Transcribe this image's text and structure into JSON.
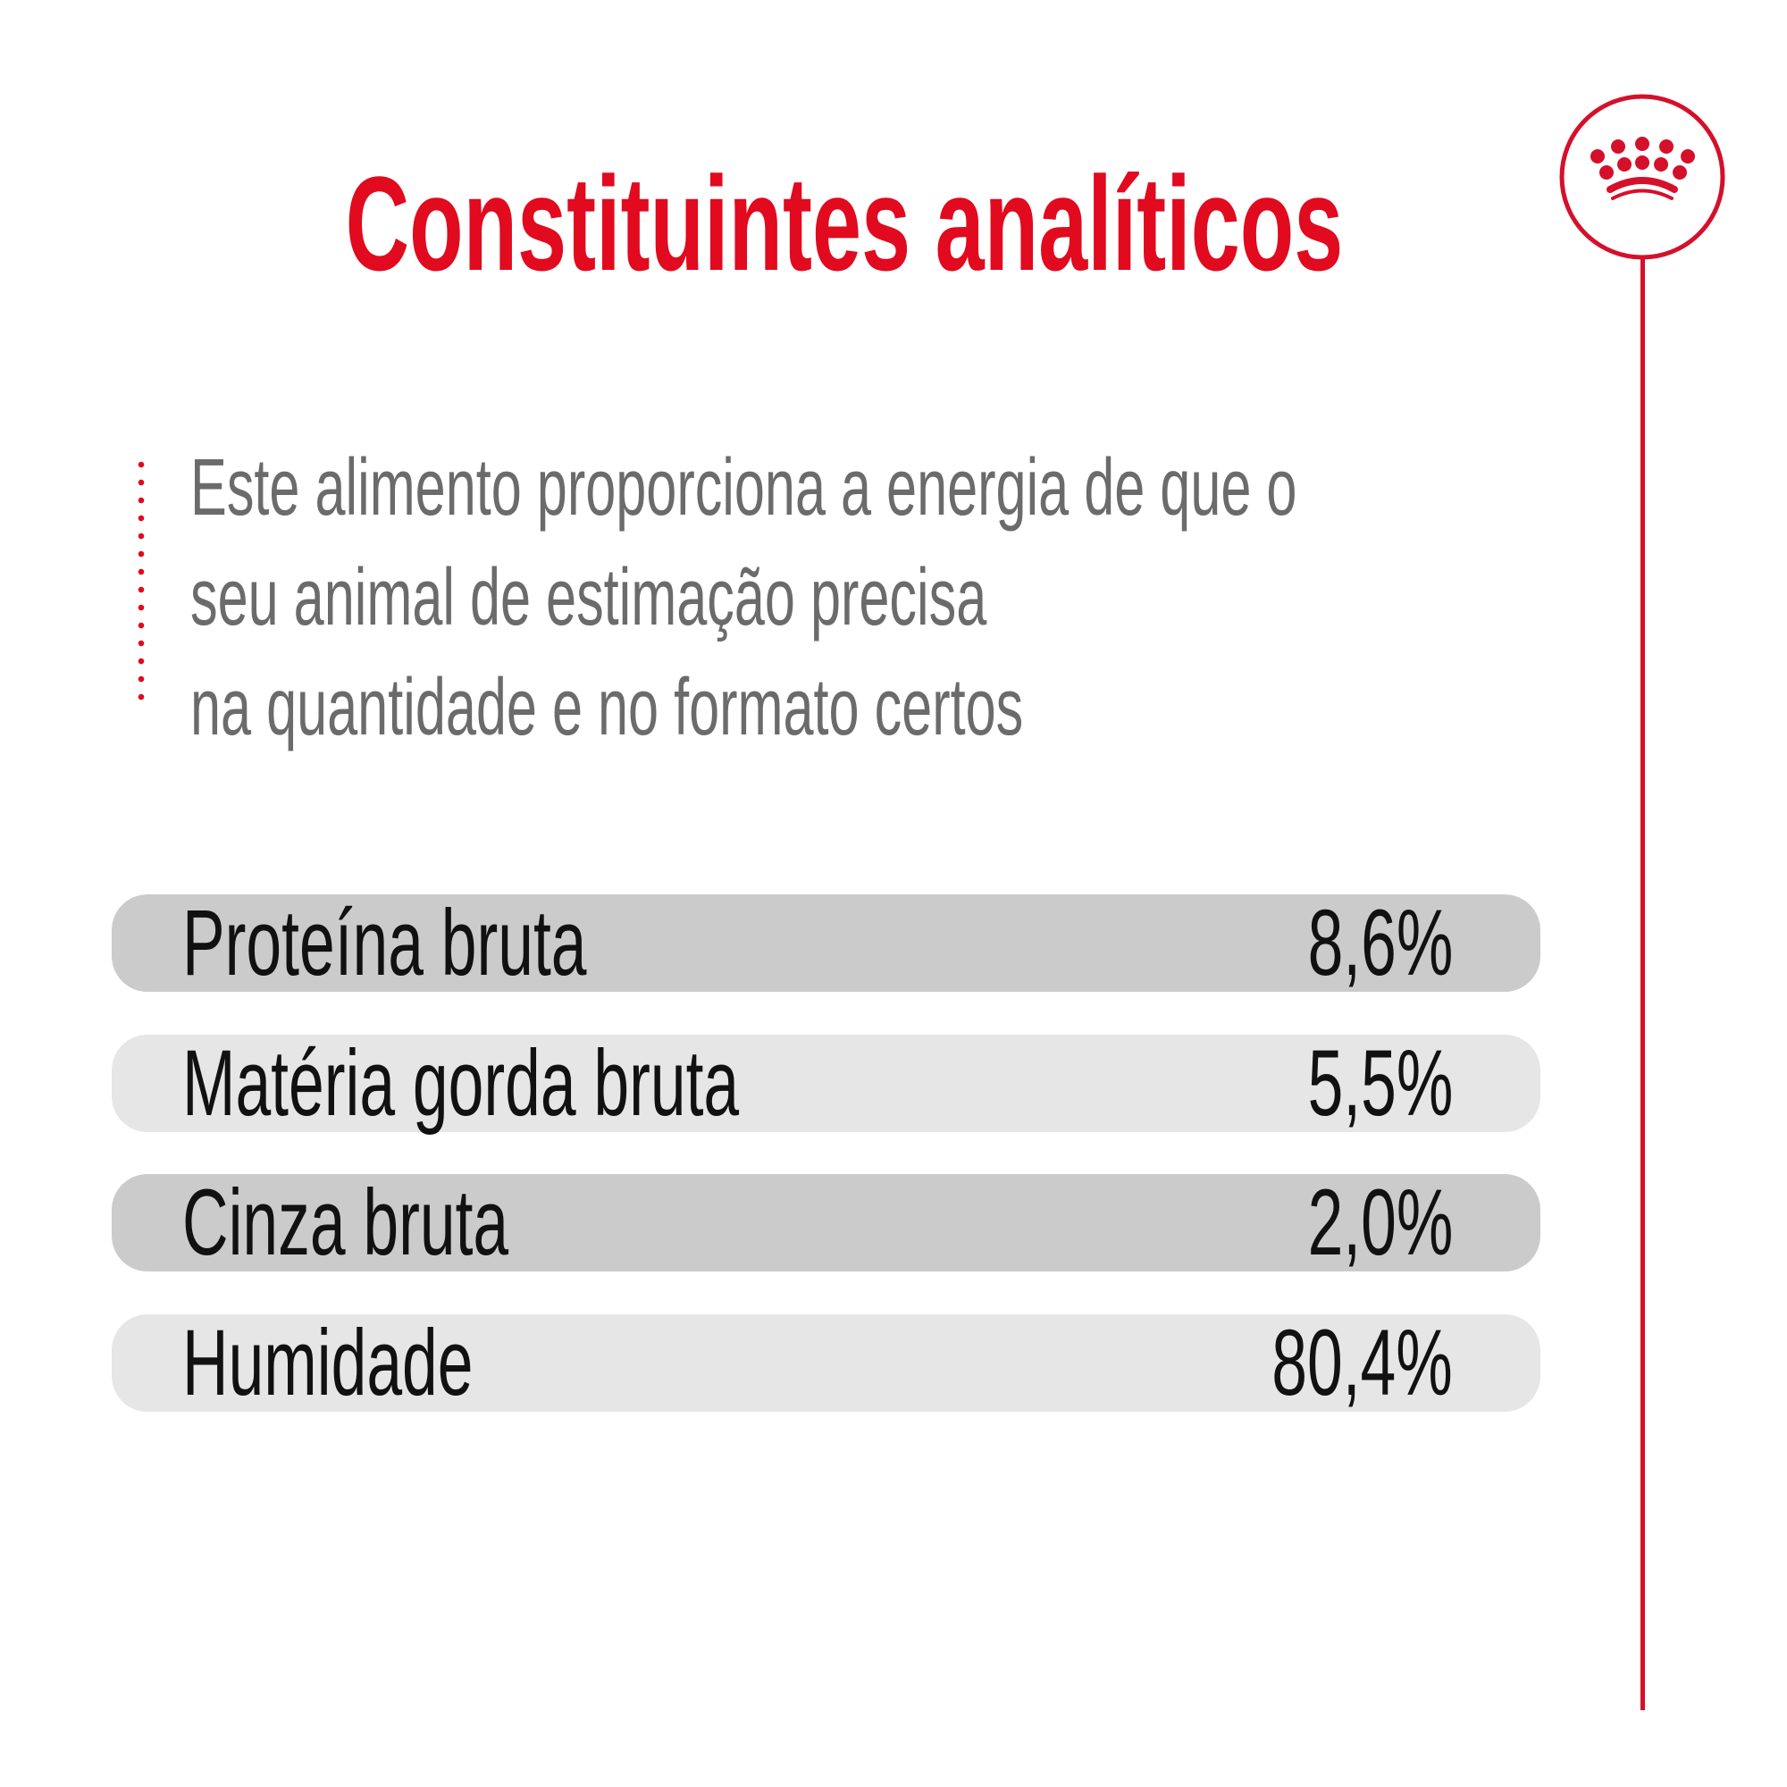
{
  "title": "Constituintes analíticos",
  "description": [
    "Este alimento proporciona a energia de que o",
    "seu animal de estimação precisa",
    "na quantidade e no formato certos"
  ],
  "constituents": [
    {
      "label": "Proteína bruta",
      "value": "8,6%"
    },
    {
      "label": "Matéria gorda bruta",
      "value": "5,5%"
    },
    {
      "label": "Cinza bruta",
      "value": "2,0%"
    },
    {
      "label": "Humidade",
      "value": "80,4%"
    }
  ],
  "colors": {
    "accent": "#e10a1e",
    "text_gray": "#6b6b6b",
    "row_dark": "#cbcbcb",
    "row_light": "#e6e6e6"
  },
  "logo": {
    "icon": "royal-canin-crown-icon"
  }
}
